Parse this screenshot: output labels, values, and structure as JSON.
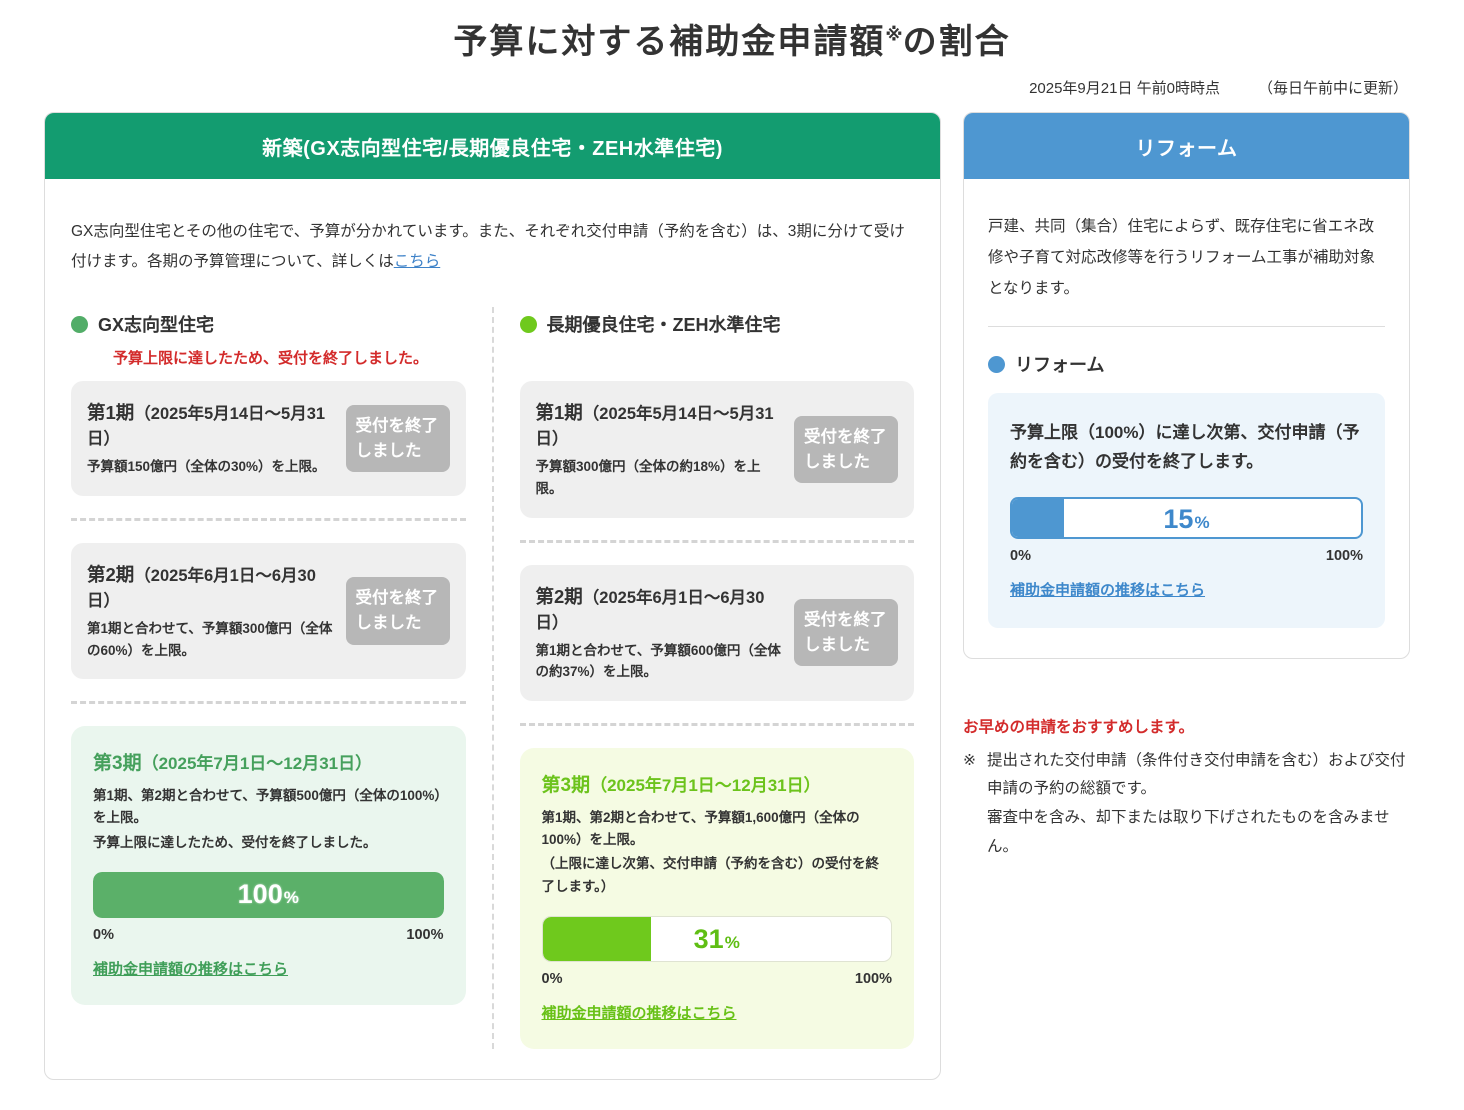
{
  "page": {
    "title_main": "予算に対する補助金申請額",
    "title_sup": "※",
    "title_tail": "の割合",
    "timestamp": "2025年9月21日 午前0時時点",
    "update_note": "（毎日午前中に更新）"
  },
  "colors": {
    "shinchiku_header_green": "#139c70",
    "reform_header_blue": "#4e97d1",
    "gx_bar_green": "#5bb069",
    "zeh_bar_lime": "#6fc91d",
    "reform_bar_blue": "#4e97d1",
    "alert_red": "#d32b2b",
    "badge_gray": "#b7b7b7"
  },
  "shinchiku": {
    "header": "新築(GX志向型住宅/長期優良住宅・ZEH水準住宅)",
    "description": "GX志向型住宅とその他の住宅で、予算が分かれています。また、それぞれ交付申請（予約を含む）は、3期に分けて受け付けます。各期の予算管理について、詳しくは",
    "description_link": "こちら",
    "gx": {
      "legend": "GX志向型住宅",
      "closed_notice": "予算上限に達したため、受付を終了しました。",
      "period1": {
        "title": "第1期",
        "range": "（2025年5月14日〜5月31日）",
        "text": "予算額150億円（全体の30%）を上限。",
        "badge": "受付を終了しました"
      },
      "period2": {
        "title": "第2期",
        "range": "（2025年6月1日〜6月30日）",
        "text": "第1期と合わせて、予算額300億円（全体の60%）を上限。",
        "badge": "受付を終了しました"
      },
      "period3": {
        "title": "第3期",
        "range": "（2025年7月1日〜12月31日）",
        "line1": "第1期、第2期と合わせて、予算額500億円（全体の100%）を上限。",
        "line2": "予算上限に達したため、受付を終了しました。",
        "progress_value": 100,
        "progress_label": "100",
        "unit": "%",
        "scale_min": "0%",
        "scale_max": "100%",
        "link": "補助金申請額の推移はこちら"
      }
    },
    "zeh": {
      "legend": "長期優良住宅・ZEH水準住宅",
      "period1": {
        "title": "第1期",
        "range": "（2025年5月14日〜5月31日）",
        "text": "予算額300億円（全体の約18%）を上限。",
        "badge": "受付を終了しました"
      },
      "period2": {
        "title": "第2期",
        "range": "（2025年6月1日〜6月30日）",
        "text": "第1期と合わせて、予算額600億円（全体の約37%）を上限。",
        "badge": "受付を終了しました"
      },
      "period3": {
        "title": "第3期",
        "range": "（2025年7月1日〜12月31日）",
        "line1": "第1期、第2期と合わせて、予算額1,600億円（全体の100%）を上限。",
        "line2": "（上限に達し次第、交付申請（予約を含む）の受付を終了します。）",
        "progress_value": 31,
        "progress_label": "31",
        "unit": "%",
        "scale_min": "0%",
        "scale_max": "100%",
        "link": "補助金申請額の推移はこちら"
      }
    }
  },
  "reform": {
    "header": "リフォーム",
    "description": "戸建、共同（集合）住宅によらず、既存住宅に省エネ改修や子育て対応改修等を行うリフォーム工事が補助対象となります。",
    "legend": "リフォーム",
    "box": {
      "notice": "予算上限（100%）に達し次第、交付申請（予約を含む）の受付を終了します。",
      "progress_value": 15,
      "progress_label": "15",
      "unit": "%",
      "scale_min": "0%",
      "scale_max": "100%",
      "link": "補助金申請額の推移はこちら"
    }
  },
  "footnote": {
    "recommend": "お早めの申請をおすすめします。",
    "note_mark": "※",
    "note_line1": "提出された交付申請（条件付き交付申請を含む）および交付申請の予約の総額です。",
    "note_line2": "審査中を含み、却下または取り下げされたものを含みません。"
  }
}
